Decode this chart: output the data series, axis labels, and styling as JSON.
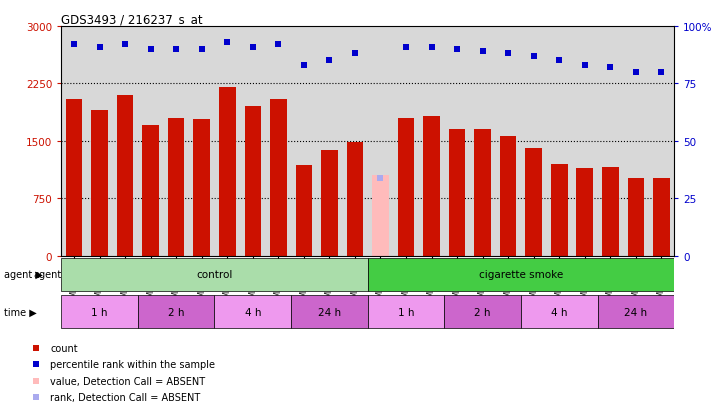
{
  "title": "GDS3493 / 216237_s_at",
  "samples": [
    "GSM270872",
    "GSM270873",
    "GSM270874",
    "GSM270875",
    "GSM270876",
    "GSM270878",
    "GSM270879",
    "GSM270880",
    "GSM270881",
    "GSM270882",
    "GSM270883",
    "GSM270884",
    "GSM270885",
    "GSM270886",
    "GSM270887",
    "GSM270888",
    "GSM270889",
    "GSM270890",
    "GSM270891",
    "GSM270892",
    "GSM270893",
    "GSM270894",
    "GSM270895",
    "GSM270896"
  ],
  "counts": [
    2050,
    1900,
    2100,
    1700,
    1800,
    1780,
    2200,
    1950,
    2050,
    1180,
    1380,
    1480,
    0,
    1800,
    1820,
    1650,
    1650,
    1560,
    1400,
    1200,
    1150,
    1160,
    1020,
    1020
  ],
  "absent_count_val": 1050,
  "absent_count_idx": 12,
  "percentile_ranks": [
    92,
    91,
    92,
    90,
    90,
    90,
    93,
    91,
    92,
    83,
    85,
    88,
    34,
    91,
    91,
    90,
    89,
    88,
    87,
    85,
    83,
    82,
    80,
    80
  ],
  "absent_rank_val": 34,
  "absent_rank_idx": 12,
  "bar_color": "#cc1100",
  "rank_color": "#0000cc",
  "absent_count_color": "#ffbbbb",
  "absent_rank_color": "#aaaaee",
  "ylim_left": [
    0,
    3000
  ],
  "ylim_right": [
    0,
    100
  ],
  "yticks_left": [
    0,
    750,
    1500,
    2250,
    3000
  ],
  "yticks_right": [
    0,
    25,
    50,
    75,
    100
  ],
  "background_color": "#d8d8d8",
  "agent_groups": [
    {
      "label": "control",
      "start": 0,
      "end": 12,
      "color": "#aaddaa"
    },
    {
      "label": "cigarette smoke",
      "start": 12,
      "end": 24,
      "color": "#44cc44"
    }
  ],
  "time_groups": [
    {
      "label": "1 h",
      "start": 0,
      "end": 3,
      "color": "#ee99ee"
    },
    {
      "label": "2 h",
      "start": 3,
      "end": 6,
      "color": "#cc66cc"
    },
    {
      "label": "4 h",
      "start": 6,
      "end": 9,
      "color": "#ee99ee"
    },
    {
      "label": "24 h",
      "start": 9,
      "end": 12,
      "color": "#cc66cc"
    },
    {
      "label": "1 h",
      "start": 12,
      "end": 15,
      "color": "#ee99ee"
    },
    {
      "label": "2 h",
      "start": 15,
      "end": 18,
      "color": "#cc66cc"
    },
    {
      "label": "4 h",
      "start": 18,
      "end": 21,
      "color": "#ee99ee"
    },
    {
      "label": "24 h",
      "start": 21,
      "end": 24,
      "color": "#cc66cc"
    }
  ],
  "legend_items": [
    {
      "label": "count",
      "color": "#cc1100"
    },
    {
      "label": "percentile rank within the sample",
      "color": "#0000cc"
    },
    {
      "label": "value, Detection Call = ABSENT",
      "color": "#ffbbbb"
    },
    {
      "label": "rank, Detection Call = ABSENT",
      "color": "#aaaaee"
    }
  ]
}
